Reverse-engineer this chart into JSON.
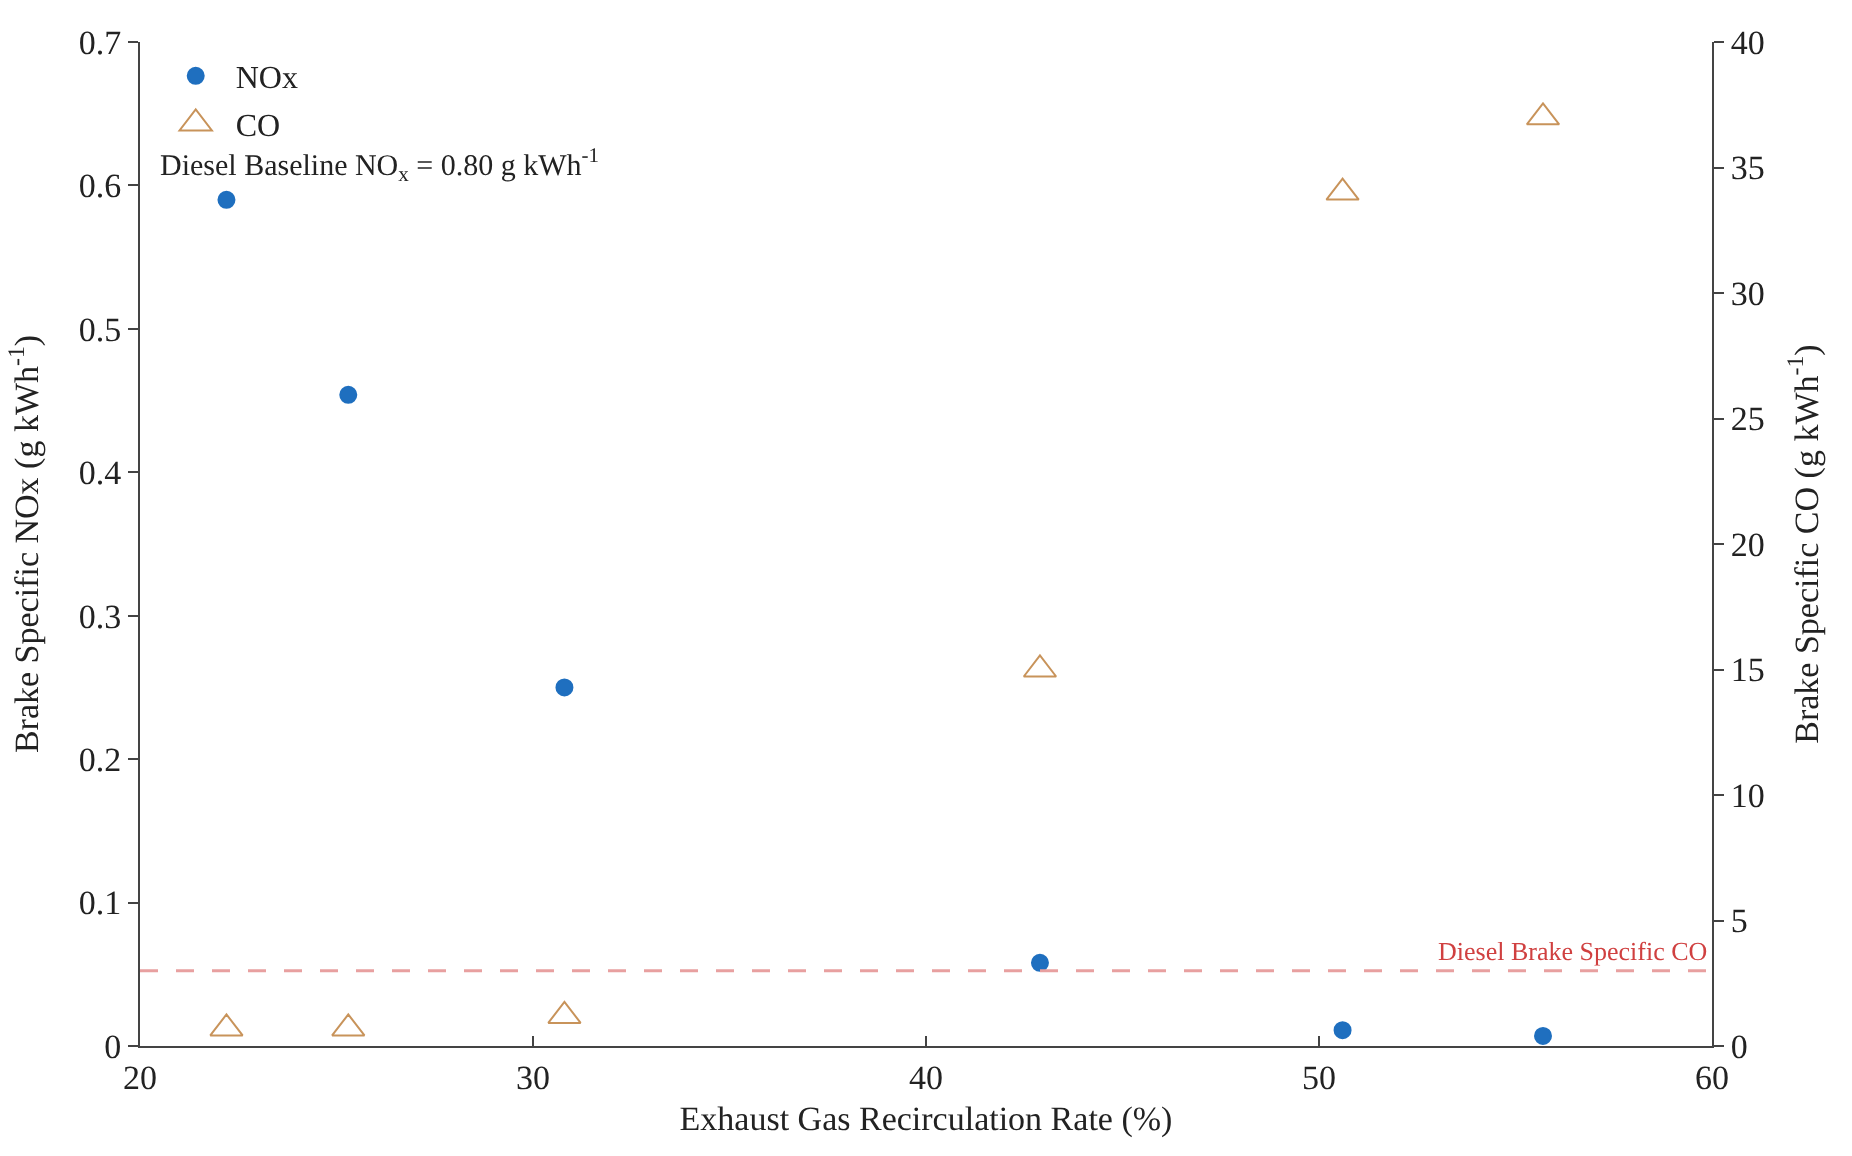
{
  "chart_data": {
    "type": "scatter",
    "xlabel": "Exhaust Gas Recirculation Rate (%)",
    "ylabel": "Brake Specific NOx (g kWh$^{-1}$)",
    "y2label": "Brake Specific CO (g kWh$^{-1}$)",
    "x": [
      22.2,
      25.3,
      30.8,
      42.9,
      50.6,
      55.7
    ],
    "series": [
      {
        "name": "NOx",
        "color": "#1f6fbf",
        "marker": "circle",
        "values": [
          0.59,
          0.454,
          0.25,
          0.058,
          0.011,
          0.007
        ]
      },
      {
        "name": "CO",
        "color": "#c8935a",
        "marker": "triangle",
        "axis": "y2",
        "values": [
          0.7,
          0.7,
          1.2,
          15,
          34,
          37
        ]
      }
    ],
    "xlim": [
      20,
      60
    ],
    "xticks": [
      20,
      30,
      40,
      50,
      60
    ],
    "ylim": [
      0,
      0.7
    ],
    "yticks": [
      0,
      0.1,
      0.2,
      0.3,
      0.4,
      0.5,
      0.6,
      0.7
    ],
    "y2lim": [
      0,
      40
    ],
    "y2ticks": [
      0,
      5,
      10,
      15,
      20,
      25,
      30,
      35,
      40
    ],
    "ref_lines": [
      {
        "axis": "y2",
        "value": 3,
        "label": "Diesel Brake Specific CO",
        "color": "#e8a0a0",
        "line_style": "dashed"
      }
    ],
    "annotations": [
      "Diesel Baseline NO$_{x}$ = 0.80 g kWh$^{-1}$"
    ],
    "legend": "top left"
  }
}
